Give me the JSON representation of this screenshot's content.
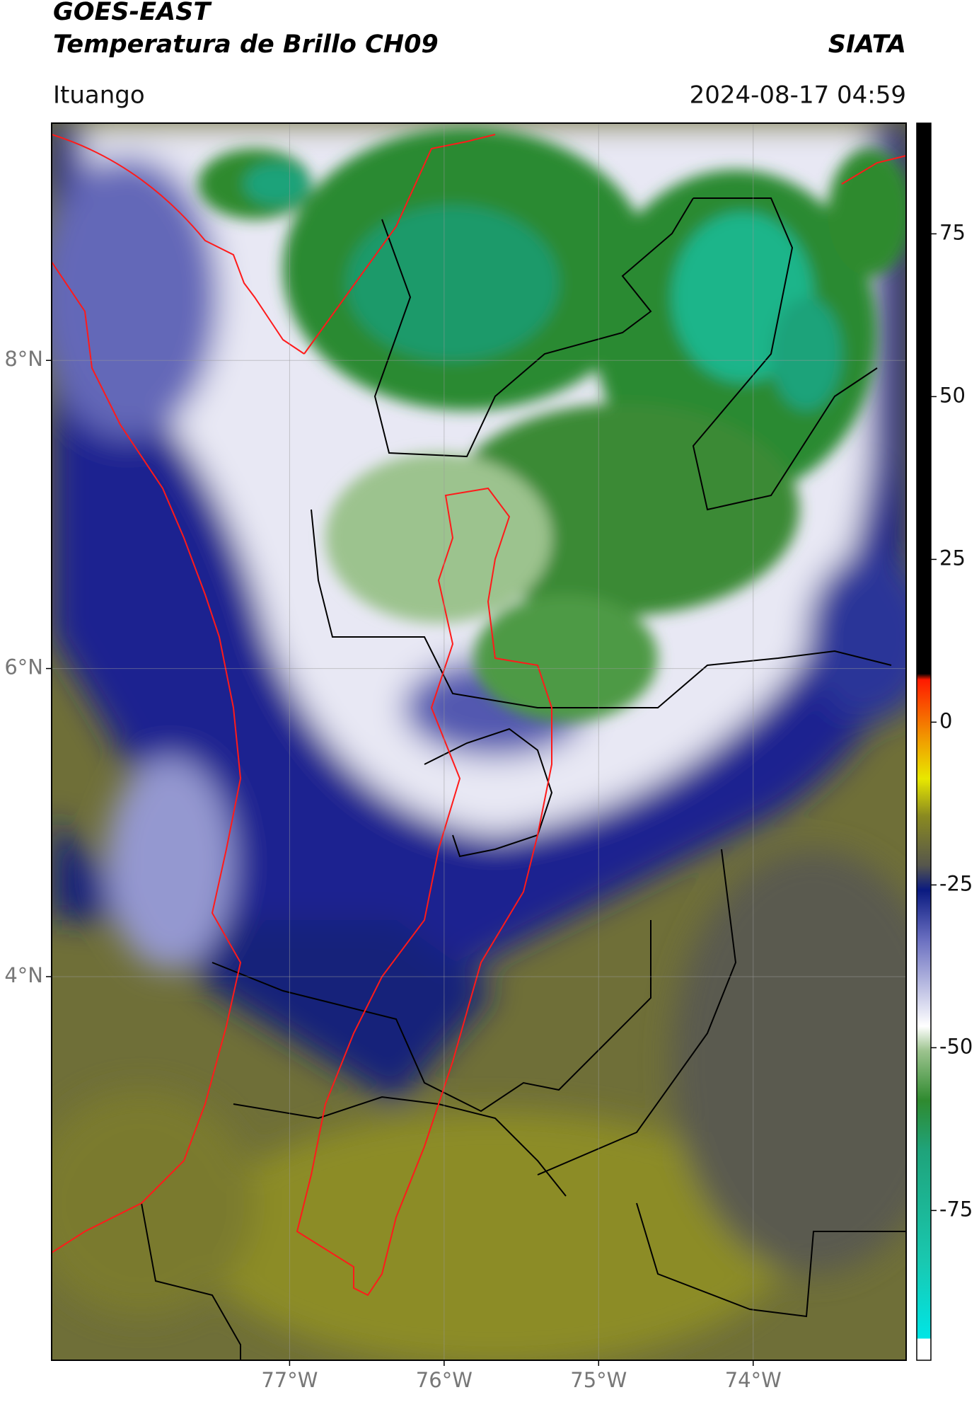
{
  "header": {
    "title": "GOES-EAST",
    "subtitle": "Temperatura de Brillo CH09",
    "brand": "SIATA",
    "location": "Ituango",
    "datetime": "2024-08-17 04:59"
  },
  "map": {
    "xlim": [
      -78.54,
      -73.01
    ],
    "ylim": [
      1.51,
      9.54
    ],
    "xticks": [
      {
        "value": -77,
        "label": "77°W"
      },
      {
        "value": -76,
        "label": "76°W"
      },
      {
        "value": -75,
        "label": "75°W"
      },
      {
        "value": -74,
        "label": "74°W"
      }
    ],
    "yticks": [
      {
        "value": 4,
        "label": "4°N"
      },
      {
        "value": 6,
        "label": "6°N"
      },
      {
        "value": 8,
        "label": "8°N"
      }
    ],
    "grid": true
  },
  "colorbar": {
    "clim": [
      -98,
      92
    ],
    "ticks": [
      -75,
      -50,
      -25,
      0,
      25,
      50,
      75
    ]
  }
}
